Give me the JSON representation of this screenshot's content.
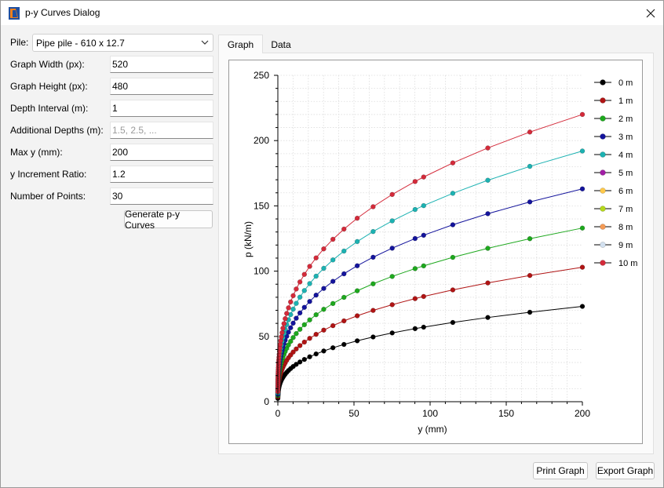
{
  "window": {
    "title": "p-y Curves Dialog"
  },
  "form": {
    "pile_label": "Pile:",
    "pile_value": "Pipe pile - 610 x 12.7",
    "fields": [
      {
        "label": "Graph Width (px):",
        "value": "520",
        "placeholder": ""
      },
      {
        "label": "Graph Height (px):",
        "value": "480",
        "placeholder": ""
      },
      {
        "label": "Depth Interval (m):",
        "value": "1",
        "placeholder": ""
      },
      {
        "label": "Additional Depths (m):",
        "value": "",
        "placeholder": "1.5, 2.5, ..."
      },
      {
        "label": "Max y (mm):",
        "value": "200",
        "placeholder": ""
      },
      {
        "label": "y Increment Ratio:",
        "value": "1.2",
        "placeholder": ""
      },
      {
        "label": "Number of Points:",
        "value": "30",
        "placeholder": ""
      }
    ],
    "generate_label": "Generate p-y Curves"
  },
  "tabs": [
    {
      "label": "Graph",
      "active": true
    },
    {
      "label": "Data",
      "active": false
    }
  ],
  "buttons": {
    "print": "Print Graph",
    "export": "Export Graph"
  },
  "chart_data": {
    "type": "line",
    "xlabel": "y (mm)",
    "ylabel": "p (kN/m)",
    "xlim": [
      0,
      200
    ],
    "ylim": [
      0,
      250
    ],
    "xticks": [
      "0",
      "50",
      "100",
      "150",
      "200"
    ],
    "yticks": [
      "0",
      "50",
      "100",
      "150",
      "200",
      "250"
    ],
    "grid": true,
    "legend_position": "right",
    "curve_y_values_mm": [
      0,
      0.0084,
      0.0185,
      0.0307,
      0.0453,
      0.0628,
      0.0839,
      0.109,
      0.14,
      0.176,
      0.22,
      0.272,
      0.335,
      0.411,
      0.502,
      0.611,
      0.742,
      0.9,
      1.09,
      1.32,
      1.59,
      1.92,
      2.31,
      2.78,
      3.34,
      4.02,
      4.83,
      5.81,
      6.98,
      8.38,
      10.06,
      12.08,
      14.51,
      17.42,
      20.92,
      25.11,
      30.14,
      36.18,
      43.43,
      52.13,
      62.57,
      75.1,
      90.13,
      95.75,
      114.9,
      137.9,
      165.5,
      200
    ],
    "series": [
      {
        "name": "0 m",
        "color": "#000000",
        "p_at_200": 73,
        "visible": true
      },
      {
        "name": "1 m",
        "color": "#b01414",
        "p_at_200": 103,
        "visible": true
      },
      {
        "name": "2 m",
        "color": "#1da81d",
        "p_at_200": 133,
        "visible": true
      },
      {
        "name": "3 m",
        "color": "#14149c",
        "p_at_200": 163,
        "visible": true
      },
      {
        "name": "4 m",
        "color": "#1cb2b2",
        "p_at_200": 192,
        "visible": true
      },
      {
        "name": "5 m",
        "color": "#a21ea6",
        "p_at_200": 0,
        "visible": false
      },
      {
        "name": "6 m",
        "color": "#ffc94a",
        "p_at_200": 0,
        "visible": false
      },
      {
        "name": "7 m",
        "color": "#b5d81c",
        "p_at_200": 0,
        "visible": false
      },
      {
        "name": "8 m",
        "color": "#f49a55",
        "p_at_200": 0,
        "visible": false
      },
      {
        "name": "9 m",
        "color": "#d3e1f0",
        "p_at_200": 0,
        "visible": false
      },
      {
        "name": "10 m",
        "color": "#d42a3a",
        "p_at_200": 220,
        "visible": true
      }
    ]
  }
}
